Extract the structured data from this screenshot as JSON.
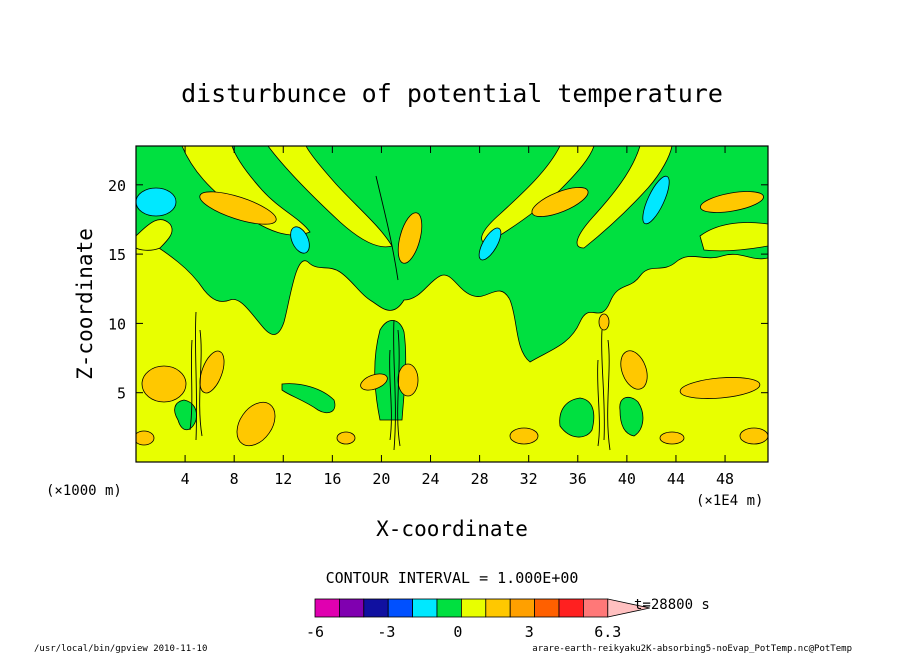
{
  "chart_data": {
    "type": "heatmap",
    "title": "disturbunce of potential temperature",
    "xlabel": "X-coordinate",
    "ylabel": "Z-coordinate",
    "x_unit_left": "(×1000 m)",
    "x_unit_right": "(×1E4 m)",
    "xlim": [
      0,
      51.5
    ],
    "ylim": [
      0,
      22.8
    ],
    "x_ticks": [
      "4",
      "8",
      "12",
      "16",
      "20",
      "24",
      "28",
      "32",
      "36",
      "40",
      "44",
      "48"
    ],
    "x_tick_values": [
      4,
      8,
      12,
      16,
      20,
      24,
      28,
      32,
      36,
      40,
      44,
      48
    ],
    "y_ticks": [
      "5",
      "10",
      "15",
      "20"
    ],
    "y_tick_values": [
      5,
      10,
      15,
      20
    ],
    "contour_interval": "CONTOUR INTERVAL = 1.000E+00",
    "time_label": "t=28800 s",
    "colorbar": {
      "labels": [
        "-6",
        "-3",
        "0",
        "3",
        "6.3"
      ],
      "label_values": [
        -6,
        -3,
        0,
        3,
        6.3
      ],
      "range": [
        -6,
        6.3
      ],
      "colors": [
        "#e000b0",
        "#8000b0",
        "#1010a0",
        "#0050ff",
        "#00e8ff",
        "#00e040",
        "#e8ff00",
        "#ffc800",
        "#ffa000",
        "#ff6000",
        "#ff2020",
        "#ff7878",
        "#ffc0c0"
      ]
    },
    "background_value_color": "#e8ff00",
    "regions": [
      {
        "level": "0 to 1",
        "color": "#e8ff00",
        "area": "background (most of domain)"
      },
      {
        "level": "-1 to 0",
        "color": "#00e040",
        "area": "upper layer and plumes"
      },
      {
        "level": "-2 to -1",
        "color": "#00e8ff",
        "area": "small patches near z=15-20"
      },
      {
        "level": "1 to 2",
        "color": "#ffc800",
        "area": "scattered cells"
      }
    ]
  },
  "footer": {
    "left": "/usr/local/bin/gpview  2010-11-10",
    "right": "arare-earth-reikyaku2K-absorbing5-noEvap_PotTemp.nc@PotTemp"
  }
}
